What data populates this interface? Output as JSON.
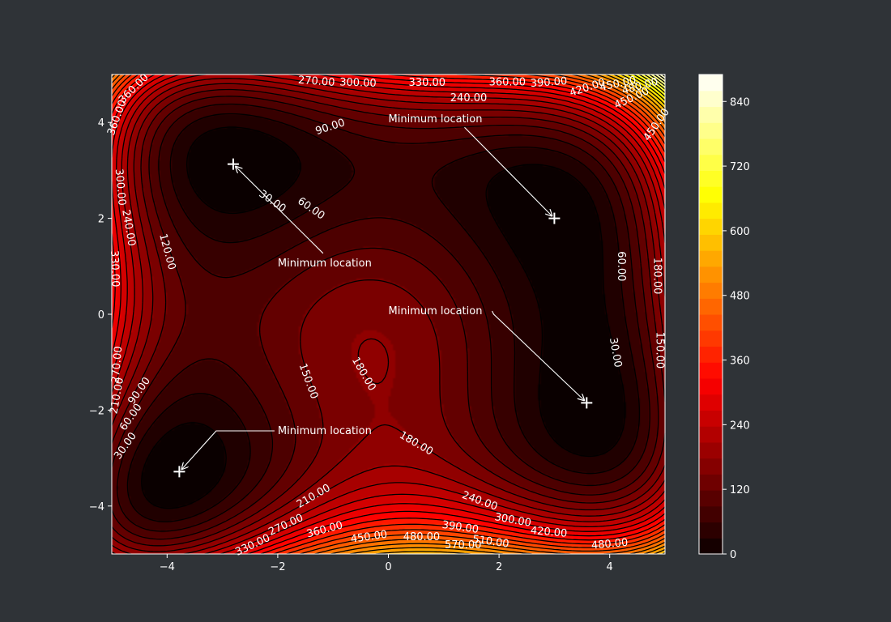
{
  "chart_data": {
    "type": "contour",
    "function": "himmelblau",
    "xlim": [
      -5,
      5
    ],
    "ylim": [
      -5,
      5
    ],
    "x_ticks": [
      -4,
      -2,
      0,
      2,
      4
    ],
    "y_ticks": [
      -4,
      -2,
      0,
      2,
      4
    ],
    "x_tick_labels": [
      "−4",
      "−2",
      "0",
      "2",
      "4"
    ],
    "y_tick_labels": [
      "−4",
      "−2",
      "0",
      "2",
      "4"
    ],
    "colormap": "hot",
    "colorbar": {
      "range": [
        0,
        890
      ],
      "ticks": [
        0,
        120,
        240,
        360,
        480,
        600,
        720,
        840
      ],
      "tick_labels": [
        "0",
        "120",
        "240",
        "360",
        "480",
        "600",
        "720",
        "840"
      ]
    },
    "contour_levels": [
      30,
      60,
      90,
      120,
      150,
      180,
      210,
      240,
      270,
      300,
      330,
      360,
      390,
      420,
      450,
      480,
      510,
      540,
      570,
      600,
      630,
      660,
      690,
      720,
      750,
      780,
      810,
      840,
      870
    ],
    "minima": [
      {
        "x": 3.0,
        "y": 2.0
      },
      {
        "x": -2.805,
        "y": 3.131
      },
      {
        "x": -3.779,
        "y": -3.283
      },
      {
        "x": 3.584,
        "y": -1.848
      }
    ],
    "annotations": [
      {
        "text": "Minimum location",
        "target_x": 3.0,
        "target_y": 2.0,
        "text_x": 0.0,
        "text_y": 4.0
      },
      {
        "text": "Minimum location",
        "target_x": -2.805,
        "target_y": 3.131,
        "text_x": -2.0,
        "text_y": 1.0
      },
      {
        "text": "Minimum location",
        "target_x": -3.779,
        "target_y": -3.283,
        "text_x": -2.0,
        "text_y": -2.5
      },
      {
        "text": "Minimum location",
        "target_x": 3.584,
        "target_y": -1.848,
        "text_x": 0.0,
        "text_y": 0.0
      }
    ],
    "contour_labels": [
      {
        "text": "270.00",
        "x": -1.3,
        "y": 4.85,
        "rot": 4
      },
      {
        "text": "300.00",
        "x": -0.55,
        "y": 4.82,
        "rot": 2
      },
      {
        "text": "330.00",
        "x": 0.7,
        "y": 4.82,
        "rot": 0
      },
      {
        "text": "360.00",
        "x": 2.15,
        "y": 4.83,
        "rot": 0
      },
      {
        "text": "390.00",
        "x": 2.9,
        "y": 4.83,
        "rot": -4
      },
      {
        "text": "420.00",
        "x": 3.6,
        "y": 4.72,
        "rot": -18
      },
      {
        "text": "450.00",
        "x": 4.15,
        "y": 4.8,
        "rot": -12
      },
      {
        "text": "480.00",
        "x": 4.55,
        "y": 4.75,
        "rot": -15
      },
      {
        "text": "450.00",
        "x": 4.4,
        "y": 4.5,
        "rot": -25
      },
      {
        "text": "450.00",
        "x": 4.85,
        "y": 3.95,
        "rot": -55
      },
      {
        "text": "240.00",
        "x": 1.45,
        "y": 4.5,
        "rot": 0
      },
      {
        "text": "90.00",
        "x": -1.05,
        "y": 3.9,
        "rot": -18
      },
      {
        "text": "30.00",
        "x": -2.1,
        "y": 2.35,
        "rot": 35
      },
      {
        "text": "60.00",
        "x": -1.4,
        "y": 2.2,
        "rot": 35
      },
      {
        "text": "120.00",
        "x": -4.0,
        "y": 1.3,
        "rot": 75
      },
      {
        "text": "60.00",
        "x": 4.2,
        "y": 1.0,
        "rot": 90
      },
      {
        "text": "180.00",
        "x": 4.85,
        "y": 0.8,
        "rot": 90
      },
      {
        "text": "30.00",
        "x": 4.1,
        "y": -0.8,
        "rot": 80
      },
      {
        "text": "150.00",
        "x": 4.9,
        "y": -0.75,
        "rot": 90
      },
      {
        "text": "150.00",
        "x": -1.45,
        "y": -1.4,
        "rot": 70
      },
      {
        "text": "180.00",
        "x": -0.45,
        "y": -1.25,
        "rot": 60
      },
      {
        "text": "180.00",
        "x": 0.5,
        "y": -2.7,
        "rot": 30
      },
      {
        "text": "90.00",
        "x": -4.5,
        "y": -1.6,
        "rot": -55
      },
      {
        "text": "60.00",
        "x": -4.65,
        "y": -2.15,
        "rot": -55
      },
      {
        "text": "30.00",
        "x": -4.75,
        "y": -2.75,
        "rot": -55
      },
      {
        "text": "210.00",
        "x": -1.35,
        "y": -3.8,
        "rot": -30
      },
      {
        "text": "240.00",
        "x": 1.65,
        "y": -3.9,
        "rot": 20
      },
      {
        "text": "270.00",
        "x": -1.85,
        "y": -4.4,
        "rot": -25
      },
      {
        "text": "300.00",
        "x": 2.25,
        "y": -4.3,
        "rot": 10
      },
      {
        "text": "360.00",
        "x": -1.15,
        "y": -4.5,
        "rot": -15
      },
      {
        "text": "390.00",
        "x": 1.3,
        "y": -4.45,
        "rot": 8
      },
      {
        "text": "420.00",
        "x": 2.9,
        "y": -4.55,
        "rot": 5
      },
      {
        "text": "450.00",
        "x": -0.35,
        "y": -4.65,
        "rot": -8
      },
      {
        "text": "480.00",
        "x": 0.6,
        "y": -4.65,
        "rot": 0
      },
      {
        "text": "510.00",
        "x": 1.85,
        "y": -4.75,
        "rot": 8
      },
      {
        "text": "480.00",
        "x": 4.0,
        "y": -4.8,
        "rot": -5
      },
      {
        "text": "570.00",
        "x": 1.35,
        "y": -4.82,
        "rot": 0
      },
      {
        "text": "330.00",
        "x": -2.45,
        "y": -4.82,
        "rot": -25
      },
      {
        "text": "360.00",
        "x": -4.6,
        "y": 4.7,
        "rot": -45
      },
      {
        "text": "360.00",
        "x": -4.9,
        "y": 4.1,
        "rot": -70
      },
      {
        "text": "240.00",
        "x": -4.7,
        "y": 1.8,
        "rot": 80
      },
      {
        "text": "300.00",
        "x": -4.85,
        "y": 2.65,
        "rot": 85
      },
      {
        "text": "330.00",
        "x": -4.95,
        "y": 0.95,
        "rot": 88
      },
      {
        "text": "270.00",
        "x": -4.9,
        "y": -1.05,
        "rot": -85
      },
      {
        "text": "210.00",
        "x": -4.9,
        "y": -1.7,
        "rot": -80
      }
    ]
  }
}
